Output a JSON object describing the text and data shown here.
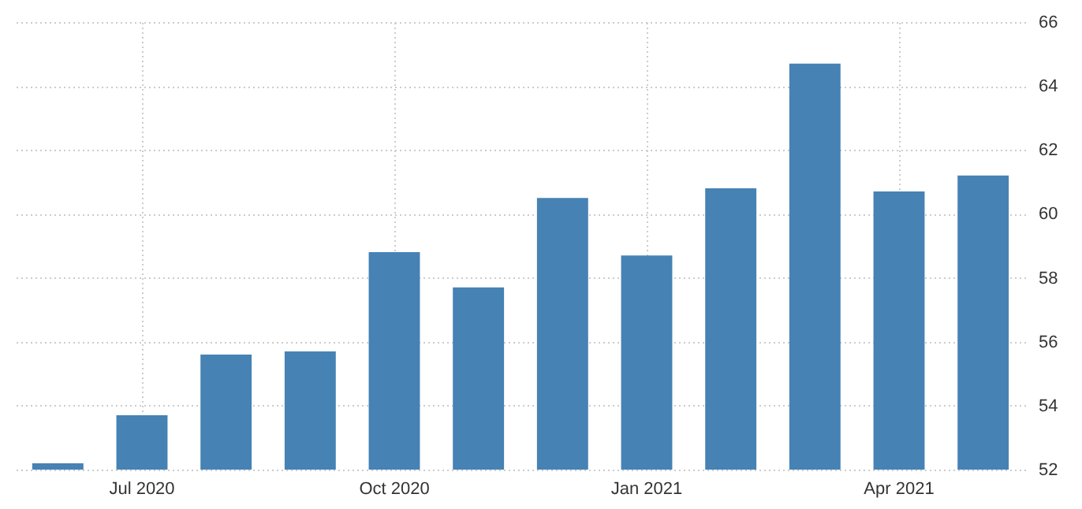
{
  "chart_data": {
    "type": "bar",
    "categories": [
      null,
      "Jul 2020",
      null,
      null,
      "Oct 2020",
      null,
      null,
      "Jan 2021",
      null,
      null,
      "Apr 2021",
      null
    ],
    "values": [
      52.2,
      53.7,
      55.6,
      55.7,
      58.8,
      57.7,
      60.5,
      58.7,
      60.8,
      64.7,
      60.7,
      61.2
    ],
    "color": "#4682b4",
    "ylim": [
      52,
      66
    ],
    "yticks": [
      52,
      54,
      56,
      58,
      60,
      62,
      64,
      66
    ],
    "grid": true
  }
}
